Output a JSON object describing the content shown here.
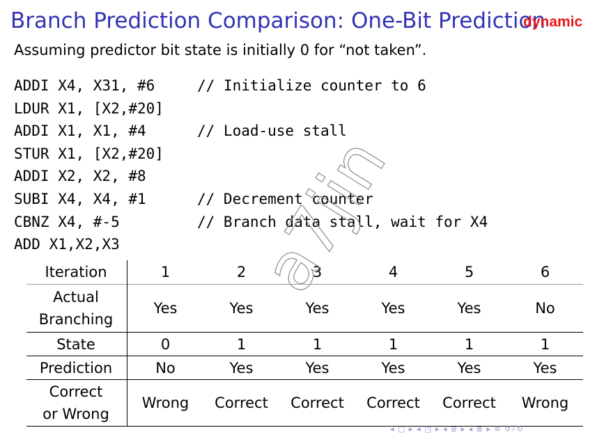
{
  "slide": {
    "title": "Branch Prediction Comparison: One-Bit Prediction",
    "tag": "dynamic",
    "subtitle": "Assuming predictor bit state is initially 0 for “not taken”."
  },
  "code": [
    {
      "instr": "ADDI X4, X31, #6",
      "comment": "// Initialize counter to 6"
    },
    {
      "instr": "LDUR X1, [X2,#20]",
      "comment": ""
    },
    {
      "instr": "ADDI X1, X1, #4",
      "comment": "// Load-use stall"
    },
    {
      "instr": "STUR X1, [X2,#20]",
      "comment": ""
    },
    {
      "instr": "ADDI X2, X2, #8",
      "comment": ""
    },
    {
      "instr": "SUBI X4, X4, #1",
      "comment": "// Decrement counter"
    },
    {
      "instr": "CBNZ X4, #-5",
      "comment": "// Branch data stall, wait for X4"
    },
    {
      "instr": "ADD X1,X2,X3",
      "comment": ""
    }
  ],
  "table": {
    "row_headers": {
      "iteration": "Iteration",
      "actual_line1": "Actual",
      "actual_line2": "Branching",
      "state": "State",
      "prediction": "Prediction",
      "correct_line1": "Correct",
      "correct_line2": "or Wrong"
    },
    "iterations": [
      "1",
      "2",
      "3",
      "4",
      "5",
      "6"
    ],
    "actual_branching": [
      "Yes",
      "Yes",
      "Yes",
      "Yes",
      "Yes",
      "No"
    ],
    "state": [
      "0",
      "1",
      "1",
      "1",
      "1",
      "1"
    ],
    "prediction": [
      "No",
      "Yes",
      "Yes",
      "Yes",
      "Yes",
      "Yes"
    ],
    "correct_or_wrong": [
      "Wrong",
      "Correct",
      "Correct",
      "Correct",
      "Correct",
      "Wrong"
    ]
  },
  "watermark": {
    "text": "a7jin"
  },
  "colors": {
    "title": "#3333b3",
    "tag": "#e8181c",
    "nav": "#9a9ad6"
  },
  "nav": {
    "icons": [
      "nav-left-icon",
      "nav-frame-icon",
      "nav-section-icon",
      "nav-subsection-icon",
      "nav-align-icon",
      "nav-search-icon"
    ]
  }
}
